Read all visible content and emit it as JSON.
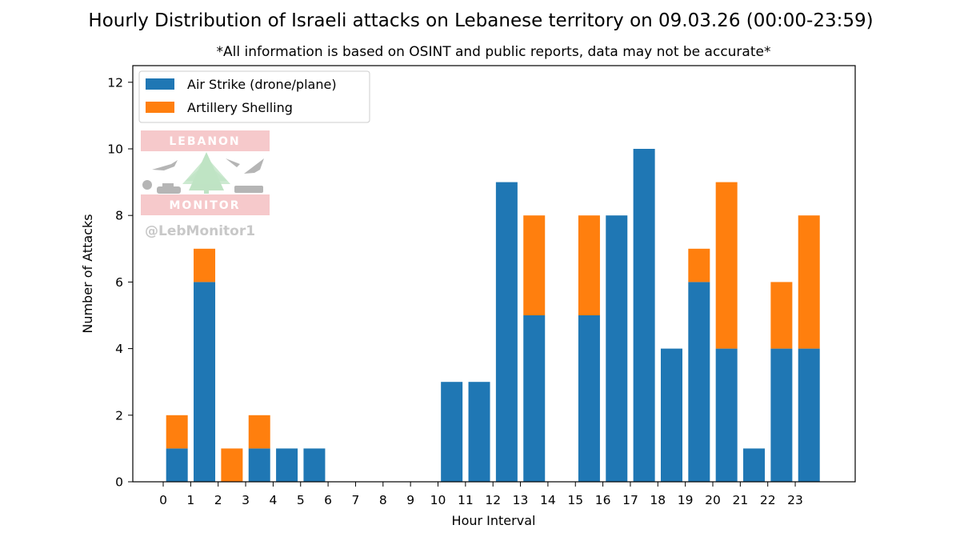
{
  "chart_data": {
    "type": "bar",
    "stacked": true,
    "title": "Hourly Distribution of Israeli attacks on Lebanese territory on 09.03.26 (00:00-23:59)",
    "subtitle": "*All information is based on OSINT and public reports, data may not be accurate*",
    "xlabel": "Hour Interval",
    "ylabel": "Number of Attacks",
    "ylim": [
      0,
      12.5
    ],
    "yticks": [
      0,
      2,
      4,
      6,
      8,
      10,
      12
    ],
    "xticks": [
      "0",
      "1",
      "2",
      "3",
      "4",
      "5",
      "6",
      "7",
      "8",
      "9",
      "10",
      "11",
      "12",
      "13",
      "14",
      "15",
      "16",
      "17",
      "18",
      "19",
      "20",
      "21",
      "22",
      "23"
    ],
    "categories": [
      0,
      1,
      2,
      3,
      4,
      5,
      6,
      7,
      8,
      9,
      10,
      11,
      12,
      13,
      14,
      15,
      16,
      17,
      18,
      19,
      20,
      21,
      22,
      23
    ],
    "legend_position": "top-left",
    "grid": false,
    "series": [
      {
        "name": "Air Strike (drone/plane)",
        "color": "#1f77b4",
        "values": [
          1,
          6,
          0,
          1,
          1,
          1,
          0,
          0,
          0,
          0,
          3,
          3,
          9,
          5,
          0,
          5,
          8,
          10,
          4,
          6,
          4,
          1,
          4,
          4
        ]
      },
      {
        "name": "Artillery Shelling",
        "color": "#ff7f0e",
        "values": [
          1,
          1,
          1,
          1,
          0,
          0,
          0,
          0,
          0,
          0,
          0,
          0,
          0,
          3,
          0,
          3,
          0,
          0,
          0,
          1,
          5,
          0,
          2,
          4
        ]
      }
    ]
  },
  "watermark": {
    "top_text": "LEBANON",
    "bottom_text": "MONITOR",
    "handle": "@LebMonitor1",
    "band_color": "#f6c9cb",
    "band_text_color": "#ffffff",
    "tree_color": "#bfe3c4",
    "icon_color": "#b5b5b5",
    "handle_color": "#c8c8c8"
  }
}
